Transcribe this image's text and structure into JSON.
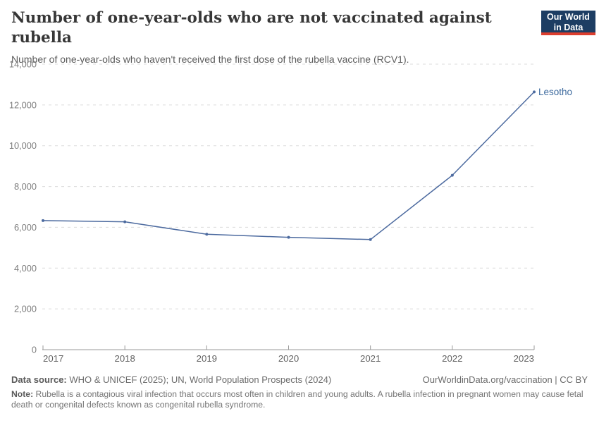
{
  "header": {
    "title": "Number of one-year-olds who are not vaccinated against rubella",
    "subtitle": "Number of one-year-olds who haven't received the first dose of the rubella vaccine (RCV1)."
  },
  "logo": {
    "line1": "Our World",
    "line2": "in Data"
  },
  "chart_data": {
    "type": "line",
    "title": "Number of one-year-olds who are not vaccinated against rubella",
    "subtitle": "Number of one-year-olds who haven't received the first dose of the rubella vaccine (RCV1).",
    "x": [
      2017,
      2018,
      2019,
      2020,
      2021,
      2022,
      2023
    ],
    "series": [
      {
        "name": "Lesotho",
        "color": "#4c6a9f",
        "values": [
          6330,
          6270,
          5660,
          5510,
          5400,
          8550,
          12640
        ]
      }
    ],
    "xlabel": "",
    "ylabel": "",
    "ylim": [
      0,
      14000
    ],
    "yticks": [
      0,
      2000,
      4000,
      6000,
      8000,
      10000,
      12000,
      14000
    ],
    "grid": "horizontal-dashed",
    "legend": "end-of-line-label"
  },
  "footer": {
    "source_label": "Data source:",
    "source_text": " WHO & UNICEF (2025); UN, World Population Prospects (2024)",
    "attribution": "OurWorldinData.org/vaccination | CC BY",
    "note_label": "Note:",
    "note_text": " Rubella is a contagious viral infection that occurs most often in children and young adults. A rubella infection in pregnant women may cause fetal death or congenital defects known as congenital rubella syndrome."
  },
  "colors": {
    "line": "#4c6a9f",
    "entity_label": "#3d6a9e",
    "logo_navy": "#1d3d63",
    "logo_red": "#dc3e2e",
    "gridline": "#dcdcdc",
    "axis": "#999999"
  }
}
